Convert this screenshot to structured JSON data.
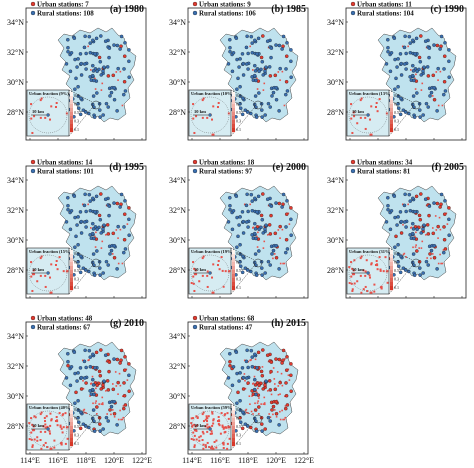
{
  "legend_labels": {
    "urban": "Urban stations:",
    "rural": "Rural stations:"
  },
  "colors": {
    "urban": "#e03a2f",
    "rural": "#3a6fb0",
    "land": "#bfe2ee",
    "inset_bg": "#d6ecf2",
    "urban_pixel": "#e8514a"
  },
  "lat_ticks": [
    "34°N",
    "32°N",
    "30°N",
    "28°N"
  ],
  "lon_ticks": [
    "114°E",
    "116°E",
    "118°E",
    "120°E",
    "122°E"
  ],
  "inset_scale": "10 km",
  "colorbar_ticks": [
    "0.9",
    "0.7",
    "0.5",
    "0.3",
    "0.1"
  ],
  "panels": [
    {
      "id": "(a) 1980",
      "urban": "7",
      "rural": "108",
      "fraction": "Urban fraction (9%)",
      "urban_level": 0.09
    },
    {
      "id": "(b) 1985",
      "urban": "9",
      "rural": "106",
      "fraction": "Urban fraction (10%)",
      "urban_level": 0.1
    },
    {
      "id": "(c) 1990",
      "urban": "11",
      "rural": "104",
      "fraction": "Urban fraction (13%)",
      "urban_level": 0.13
    },
    {
      "id": "(d) 1995",
      "urban": "14",
      "rural": "101",
      "fraction": "Urban fraction (15%)",
      "urban_level": 0.15
    },
    {
      "id": "(e) 2000",
      "urban": "18",
      "rural": "97",
      "fraction": "Urban fraction (19%)",
      "urban_level": 0.19
    },
    {
      "id": "(f) 2005",
      "urban": "34",
      "rural": "81",
      "fraction": "Urban fraction (31%)",
      "urban_level": 0.31
    },
    {
      "id": "(g) 2010",
      "urban": "48",
      "rural": "67",
      "fraction": "Urban fraction (40%)",
      "urban_level": 0.4
    },
    {
      "id": "(h) 2015",
      "urban": "68",
      "rural": "47",
      "fraction": "Urban fraction (59%)",
      "urban_level": 0.59
    }
  ]
}
